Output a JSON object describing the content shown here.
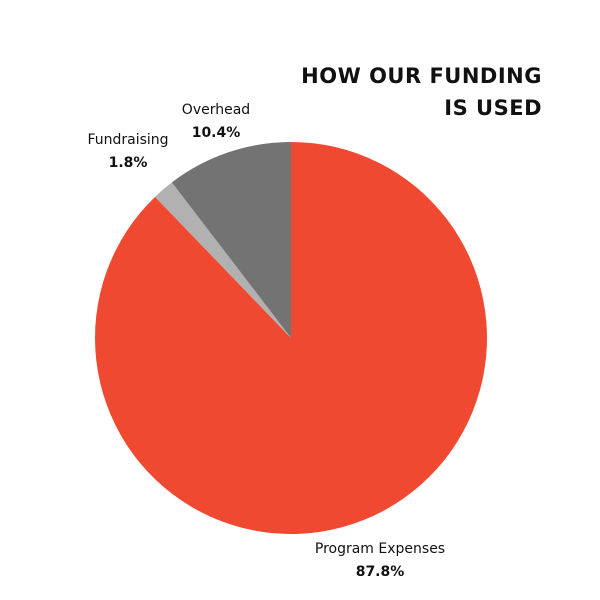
{
  "chart_data": {
    "type": "pie",
    "title": "HOW OUR FUNDING IS USED",
    "categories": [
      "Program Expenses",
      "Fundraising",
      "Overhead"
    ],
    "values": [
      87.8,
      1.8,
      10.4
    ],
    "value_labels": [
      "87.8%",
      "1.8%",
      "10.4%"
    ],
    "colors": [
      "#ef4a31",
      "#b1b1b1",
      "#737373"
    ]
  }
}
